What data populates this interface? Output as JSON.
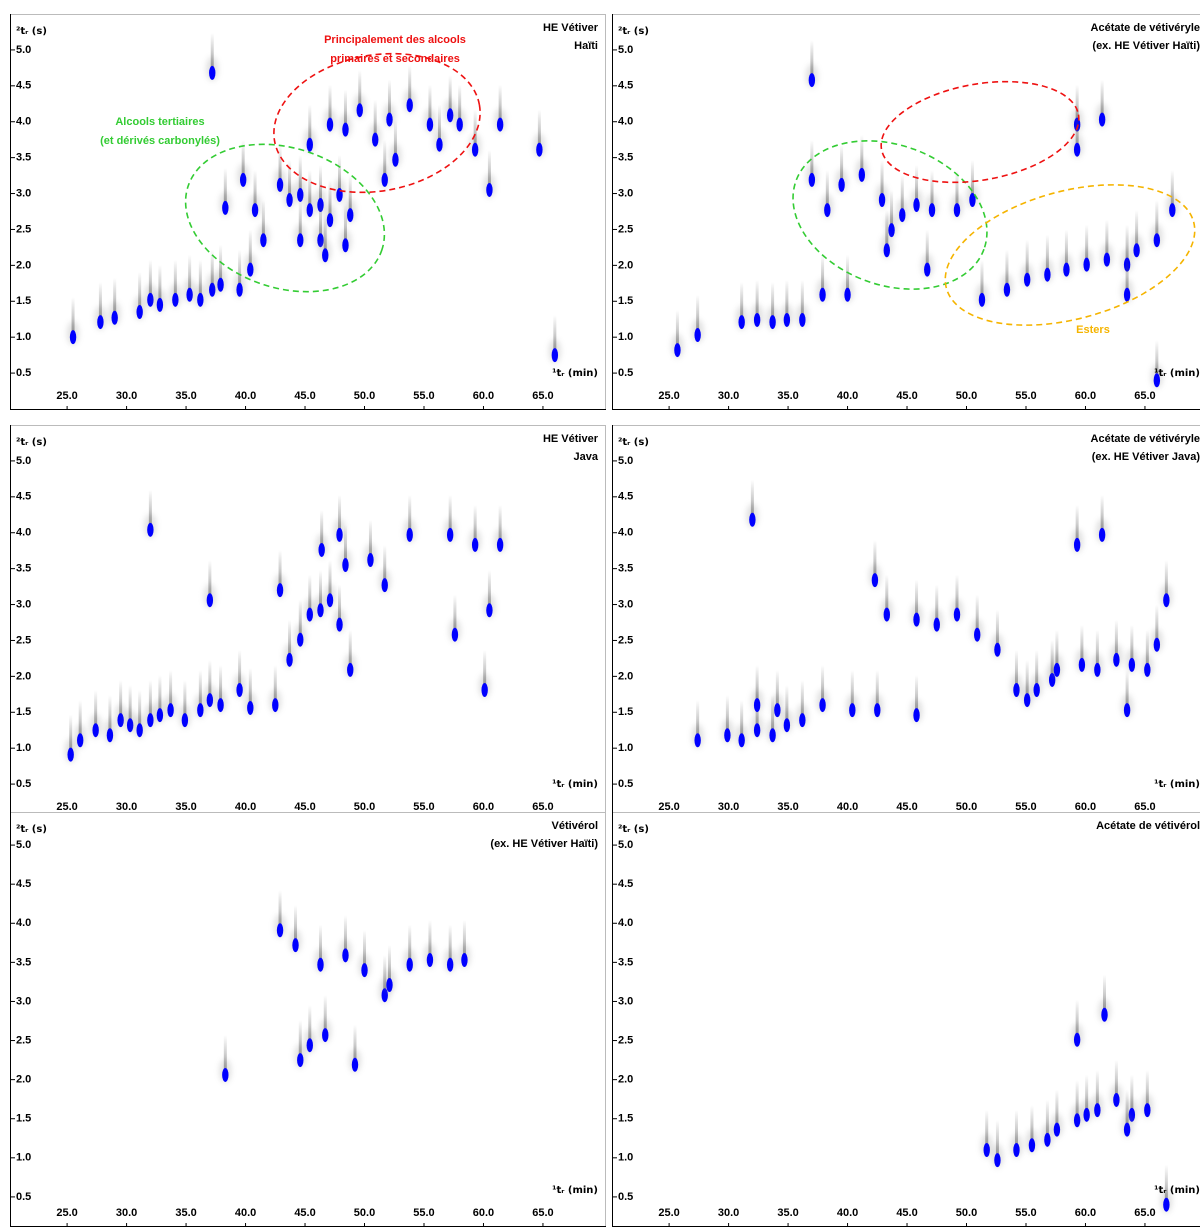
{
  "chart_data": [
    {
      "type": "scatter",
      "title": [
        "HE Vétiver",
        "Haïti"
      ],
      "xlabel": "¹tᵣ (min)",
      "ylabel": "²tᵣ (s)",
      "color": "#0000ff",
      "xlim": [
        20.2,
        70.3
      ],
      "ylim": [
        0,
        5.5
      ],
      "xticks": [
        {
          "value": 25,
          "label": "25.0"
        },
        {
          "value": 30,
          "label": "30.0"
        },
        {
          "value": 35,
          "label": "35.0"
        },
        {
          "value": 40,
          "label": "40.0"
        },
        {
          "value": 45,
          "label": "45.0"
        },
        {
          "value": 50,
          "label": "50.0"
        },
        {
          "value": 55,
          "label": "55.0"
        },
        {
          "value": 60,
          "label": "60.0"
        },
        {
          "value": 65,
          "label": "65.0"
        }
      ],
      "yticks": [
        0.5,
        {
          "value": 1,
          "label": "1.0"
        },
        1.5,
        {
          "value": 2,
          "label": "2.0"
        },
        2.5,
        {
          "value": 3,
          "label": "3.0"
        },
        3.5,
        {
          "value": 4,
          "label": "4.0"
        },
        4.5,
        {
          "value": 5,
          "label": "5.0"
        }
      ],
      "x": [
        25.5,
        27.8,
        29.0,
        31.1,
        32.0,
        32.8,
        34.1,
        35.3,
        36.2,
        37.2,
        37.9,
        39.5,
        40.4,
        38.3,
        39.8,
        40.8,
        41.5,
        42.9,
        43.7,
        44.6,
        45.4,
        46.3,
        47.1,
        44.6,
        46.3,
        47.9,
        48.8,
        48.4,
        46.7,
        45.4,
        47.1,
        48.4,
        49.6,
        50.9,
        52.1,
        52.6,
        53.8,
        55.5,
        57.2,
        58.0,
        59.3,
        61.4,
        60.5,
        37.2,
        64.7,
        66.0,
        51.7,
        56.3
      ],
      "y": [
        1.0,
        1.21,
        1.27,
        1.35,
        1.52,
        1.45,
        1.52,
        1.59,
        1.52,
        1.66,
        1.73,
        1.66,
        1.94,
        2.8,
        3.19,
        2.77,
        2.35,
        3.12,
        2.91,
        2.98,
        2.77,
        2.84,
        2.63,
        2.35,
        2.35,
        2.98,
        2.7,
        2.28,
        2.14,
        3.68,
        3.96,
        3.89,
        4.16,
        3.75,
        4.03,
        3.47,
        4.23,
        3.96,
        4.09,
        3.96,
        3.61,
        3.96,
        3.05,
        4.68,
        3.61,
        0.75,
        3.19,
        3.68
      ],
      "annotations": [
        {
          "text": [
            "Alcools tertiaires",
            "(et dérivés carbonylés)"
          ],
          "color": "#33cc33"
        },
        {
          "text": [
            "Principalement des alcools",
            "primaires et secondaires"
          ],
          "color": "#ee1111"
        }
      ]
    },
    {
      "type": "scatter",
      "title": [
        "Acétate de vétivéryle",
        "(ex. HE Vétiver Haïti)"
      ],
      "xlabel": "¹tᵣ (min)",
      "ylabel": "²tᵣ (s)",
      "color": "#0000ff",
      "xlim": [
        20.2,
        70.3
      ],
      "ylim": [
        0,
        5.5
      ],
      "xticks": [
        {
          "value": 25,
          "label": "25.0"
        },
        {
          "value": 30,
          "label": "30.0"
        },
        {
          "value": 35,
          "label": "35.0"
        },
        {
          "value": 40,
          "label": "40.0"
        },
        {
          "value": 45,
          "label": "45.0"
        },
        {
          "value": 50,
          "label": "50.0"
        },
        {
          "value": 55,
          "label": "55.0"
        },
        {
          "value": 60,
          "label": "60.0"
        },
        {
          "value": 65,
          "label": "65.0"
        }
      ],
      "yticks": [
        0.5,
        {
          "value": 1,
          "label": "1.0"
        },
        1.5,
        {
          "value": 2,
          "label": "2.0"
        },
        2.5,
        {
          "value": 3,
          "label": "3.0"
        },
        3.5,
        {
          "value": 4,
          "label": "4.0"
        },
        4.5,
        {
          "value": 5,
          "label": "5.0"
        }
      ],
      "x": [
        25.7,
        27.4,
        31.1,
        32.4,
        33.7,
        34.9,
        36.2,
        37.9,
        40.0,
        37.0,
        39.5,
        38.3,
        41.2,
        42.9,
        43.7,
        44.6,
        45.8,
        47.1,
        49.2,
        50.5,
        43.3,
        46.7,
        59.3,
        61.4,
        59.3,
        51.3,
        53.4,
        55.1,
        56.8,
        58.4,
        60.1,
        61.8,
        63.5,
        64.3,
        66.0,
        67.3,
        63.5,
        66.0,
        37.0
      ],
      "y": [
        0.82,
        1.03,
        1.21,
        1.24,
        1.21,
        1.24,
        1.24,
        1.59,
        1.59,
        3.19,
        3.12,
        2.77,
        3.26,
        2.91,
        2.49,
        2.7,
        2.84,
        2.77,
        2.77,
        2.91,
        2.21,
        1.94,
        3.96,
        4.03,
        3.61,
        1.52,
        1.66,
        1.8,
        1.87,
        1.94,
        2.01,
        2.08,
        2.01,
        2.21,
        2.35,
        2.77,
        1.59,
        0.4,
        4.58
      ],
      "annotations": [
        {
          "text": [
            "Esters"
          ],
          "color": "#f5b400"
        }
      ]
    },
    {
      "type": "scatter",
      "title": [
        "HE Vétiver",
        "Java"
      ],
      "xlabel": "¹tᵣ (min)",
      "ylabel": "²tᵣ (s)",
      "color": "#0000ff",
      "xlim": [
        20.2,
        70.3
      ],
      "ylim": [
        0,
        5.5
      ],
      "xticks": [
        {
          "value": 25,
          "label": "25.0"
        },
        {
          "value": 30,
          "label": "30.0"
        },
        {
          "value": 35,
          "label": "35.0"
        },
        {
          "value": 40,
          "label": "40.0"
        },
        {
          "value": 45,
          "label": "45.0"
        },
        {
          "value": 50,
          "label": "50.0"
        },
        {
          "value": 55,
          "label": "55.0"
        },
        {
          "value": 60,
          "label": "60.0"
        },
        {
          "value": 65,
          "label": "65.0"
        }
      ],
      "yticks": [
        0.5,
        {
          "value": 1,
          "label": "1.0"
        },
        1.5,
        {
          "value": 2,
          "label": "2.0"
        },
        2.5,
        {
          "value": 3,
          "label": "3.0"
        },
        3.5,
        {
          "value": 4,
          "label": "4.0"
        },
        4.5,
        {
          "value": 5,
          "label": "5.0"
        }
      ],
      "x": [
        25.3,
        26.1,
        27.4,
        28.6,
        29.5,
        30.3,
        31.1,
        32.0,
        32.8,
        33.7,
        34.9,
        36.2,
        37.0,
        37.9,
        39.5,
        40.4,
        42.5,
        43.7,
        44.6,
        45.4,
        46.3,
        47.1,
        47.9,
        48.8,
        46.4,
        47.9,
        48.4,
        50.5,
        51.7,
        53.8,
        57.2,
        59.3,
        61.4,
        60.5,
        57.6,
        32.0,
        37.0,
        42.9,
        60.1
      ],
      "y": [
        0.91,
        1.11,
        1.25,
        1.18,
        1.39,
        1.32,
        1.25,
        1.39,
        1.46,
        1.53,
        1.39,
        1.53,
        1.67,
        1.6,
        1.81,
        1.56,
        1.6,
        2.23,
        2.51,
        2.86,
        2.92,
        3.06,
        2.72,
        2.09,
        3.76,
        3.97,
        3.55,
        3.62,
        3.27,
        3.97,
        3.97,
        3.83,
        3.83,
        2.92,
        2.58,
        4.04,
        3.06,
        3.2,
        1.81
      ]
    },
    {
      "type": "scatter",
      "title": [
        "Acétate de vétivéryle",
        "(ex. HE Vétiver Java)"
      ],
      "xlabel": "¹tᵣ (min)",
      "ylabel": "²tᵣ (s)",
      "color": "#0000ff",
      "xlim": [
        20.2,
        70.3
      ],
      "ylim": [
        0,
        5.5
      ],
      "xticks": [
        {
          "value": 25,
          "label": "25.0"
        },
        {
          "value": 30,
          "label": "30.0"
        },
        {
          "value": 35,
          "label": "35.0"
        },
        {
          "value": 40,
          "label": "40.0"
        },
        {
          "value": 45,
          "label": "45.0"
        },
        {
          "value": 50,
          "label": "50.0"
        },
        {
          "value": 55,
          "label": "55.0"
        },
        {
          "value": 60,
          "label": "60.0"
        },
        {
          "value": 65,
          "label": "65.0"
        }
      ],
      "yticks": [
        0.5,
        {
          "value": 1,
          "label": "1.0"
        },
        1.5,
        {
          "value": 2,
          "label": "2.0"
        },
        2.5,
        {
          "value": 3,
          "label": "3.0"
        },
        3.5,
        {
          "value": 4,
          "label": "4.0"
        },
        4.5,
        {
          "value": 5,
          "label": "5.0"
        }
      ],
      "x": [
        27.4,
        29.9,
        31.1,
        32.4,
        33.7,
        34.9,
        36.2,
        37.9,
        40.4,
        42.5,
        32.4,
        34.1,
        32.0,
        42.3,
        43.3,
        45.8,
        47.5,
        49.2,
        50.9,
        52.6,
        54.2,
        55.1,
        55.9,
        57.2,
        57.6,
        59.3,
        61.4,
        59.7,
        61.0,
        62.6,
        63.9,
        65.2,
        66.8,
        66.0,
        63.5,
        45.8
      ],
      "y": [
        1.11,
        1.18,
        1.11,
        1.25,
        1.18,
        1.32,
        1.39,
        1.6,
        1.53,
        1.53,
        1.6,
        1.53,
        4.18,
        3.34,
        2.86,
        2.79,
        2.72,
        2.86,
        2.58,
        2.37,
        1.81,
        1.67,
        1.81,
        1.95,
        2.09,
        3.83,
        3.97,
        2.16,
        2.09,
        2.23,
        2.16,
        2.09,
        3.06,
        2.44,
        1.53,
        1.46
      ]
    },
    {
      "type": "scatter",
      "title": [
        "Vétivérol",
        "(ex. HE Vétiver Haïti)"
      ],
      "xlabel": "¹tᵣ (min)",
      "ylabel": "²tᵣ (s)",
      "color": "#0000ff",
      "xlim": [
        20.2,
        70.3
      ],
      "ylim": [
        0,
        5.5
      ],
      "xticks": [
        {
          "value": 25,
          "label": "25.0"
        },
        {
          "value": 30,
          "label": "30.0"
        },
        {
          "value": 35,
          "label": "35.0"
        },
        {
          "value": 40,
          "label": "40.0"
        },
        {
          "value": 45,
          "label": "45.0"
        },
        {
          "value": 50,
          "label": "50.0"
        },
        {
          "value": 55,
          "label": "55.0"
        },
        {
          "value": 60,
          "label": "60.0"
        },
        {
          "value": 65,
          "label": "65.0"
        }
      ],
      "yticks": [
        0.5,
        {
          "value": 1,
          "label": "1.0"
        },
        1.5,
        {
          "value": 2,
          "label": "2.0"
        },
        2.5,
        {
          "value": 3,
          "label": "3.0"
        },
        3.5,
        {
          "value": 4,
          "label": "4.0"
        },
        4.5,
        {
          "value": 5,
          "label": "5.0"
        }
      ],
      "x": [
        42.9,
        44.2,
        46.3,
        48.4,
        50.0,
        51.7,
        52.1,
        53.8,
        55.5,
        57.2,
        58.4,
        45.4,
        46.7,
        49.2,
        38.3,
        44.6
      ],
      "y": [
        3.91,
        3.72,
        3.47,
        3.59,
        3.4,
        3.08,
        3.21,
        3.47,
        3.53,
        3.47,
        3.53,
        2.44,
        2.57,
        2.19,
        2.06,
        2.25
      ]
    },
    {
      "type": "scatter",
      "title": [
        "Acétate de vétivérol"
      ],
      "xlabel": "¹tᵣ (min)",
      "ylabel": "²tᵣ (s)",
      "color": "#0000ff",
      "xlim": [
        20.2,
        70.3
      ],
      "ylim": [
        0,
        5.5
      ],
      "xticks": [
        {
          "value": 25,
          "label": "25.0"
        },
        {
          "value": 30,
          "label": "30.0"
        },
        {
          "value": 35,
          "label": "35.0"
        },
        {
          "value": 40,
          "label": "40.0"
        },
        {
          "value": 45,
          "label": "45.0"
        },
        {
          "value": 50,
          "label": "50.0"
        },
        {
          "value": 55,
          "label": "55.0"
        },
        {
          "value": 60,
          "label": "60.0"
        },
        {
          "value": 65,
          "label": "65.0"
        }
      ],
      "yticks": [
        0.5,
        {
          "value": 1,
          "label": "1.0"
        },
        1.5,
        {
          "value": 2,
          "label": "2.0"
        },
        2.5,
        {
          "value": 3,
          "label": "3.0"
        },
        3.5,
        {
          "value": 4,
          "label": "4.0"
        },
        4.5,
        {
          "value": 5,
          "label": "5.0"
        }
      ],
      "x": [
        51.7,
        52.6,
        54.2,
        55.5,
        56.8,
        57.6,
        59.3,
        60.1,
        61.0,
        62.6,
        63.9,
        65.2,
        59.3,
        61.6,
        63.5,
        66.8
      ],
      "y": [
        1.1,
        0.97,
        1.1,
        1.16,
        1.23,
        1.36,
        1.48,
        1.55,
        1.61,
        1.74,
        1.55,
        1.61,
        2.51,
        2.83,
        1.36,
        0.4
      ]
    }
  ]
}
